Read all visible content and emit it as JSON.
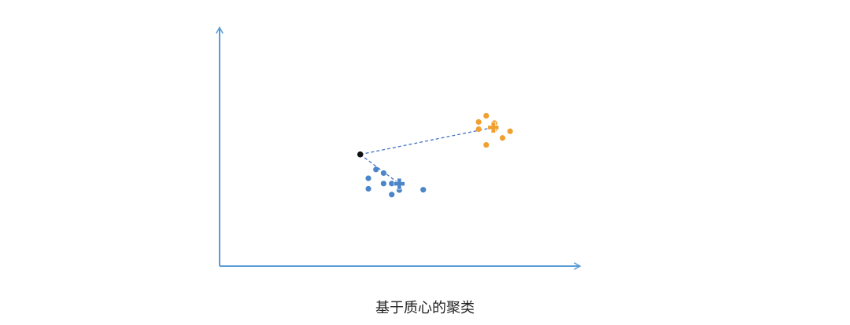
{
  "caption": "基于质心的聚类",
  "colors": {
    "axis": "#5b9bd5",
    "cluster_blue": "#4a86c8",
    "cluster_orange": "#f0a030",
    "query_point": "#111111",
    "link": "#4472c4"
  },
  "chart_data": {
    "type": "scatter",
    "title": "",
    "xlabel": "",
    "ylabel": "",
    "xlim": [
      0,
      100
    ],
    "ylim": [
      0,
      100
    ],
    "grid": false,
    "legend": "none",
    "series": [
      {
        "key": "blue",
        "points": [
          [
            28.8,
            40.5
          ],
          [
            30.2,
            39.0
          ],
          [
            27.4,
            36.8
          ],
          [
            30.2,
            34.6
          ],
          [
            31.7,
            34.6
          ],
          [
            27.4,
            32.4
          ],
          [
            33.1,
            31.9
          ],
          [
            37.5,
            32.0
          ],
          [
            31.7,
            30.0
          ]
        ],
        "centroid": [
          33.1,
          34.5
        ]
      },
      {
        "key": "orange",
        "points": [
          [
            49.1,
            63.0
          ],
          [
            47.7,
            60.4
          ],
          [
            50.6,
            59.9
          ],
          [
            47.7,
            57.4
          ],
          [
            50.6,
            57.4
          ],
          [
            53.5,
            56.5
          ],
          [
            52.1,
            53.7
          ],
          [
            49.1,
            50.8
          ]
        ],
        "centroid": [
          50.4,
          58.1
        ]
      }
    ],
    "query_point": [
      25.9,
      46.8
    ]
  }
}
